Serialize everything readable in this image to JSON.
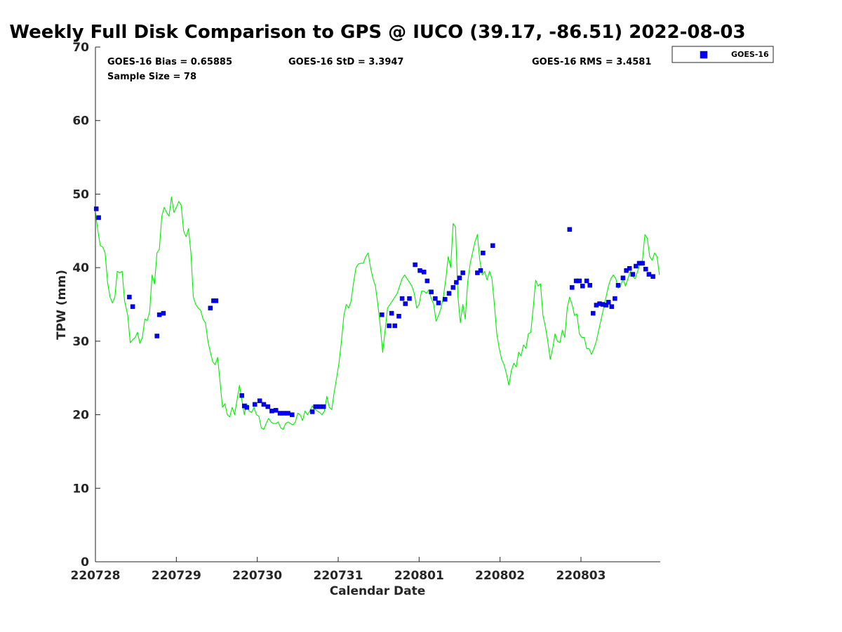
{
  "chart_data": {
    "type": "scatter",
    "title": "Weekly Full Disk Comparison to GPS @ IUCO (39.17, -86.51) 2022-08-03",
    "xlabel": "Calendar Date",
    "ylabel": "TPW (mm)",
    "xlim": [
      0,
      6.98
    ],
    "ylim": [
      0,
      70
    ],
    "x_tick_labels": [
      "220728",
      "220729",
      "220730",
      "220731",
      "220801",
      "220802",
      "220803"
    ],
    "x_tick_values": [
      0,
      1,
      2,
      3,
      4,
      5,
      6
    ],
    "y_ticks": [
      0,
      10,
      20,
      30,
      40,
      50,
      60,
      70
    ],
    "grid": false,
    "legend_placement": "outside-top-right",
    "stats": {
      "bias": "GOES-16 Bias = 0.65885",
      "std": "GOES-16 StD = 3.3947",
      "rms": "GOES-16 RMS = 3.4581",
      "sample": "Sample Size = 78"
    },
    "series": [
      {
        "name": "GOES-16",
        "kind": "scatter",
        "color": "#0000ff",
        "x": [
          0.01,
          0.04,
          0.42,
          0.46,
          0.76,
          0.79,
          0.84,
          1.42,
          1.46,
          1.49,
          1.81,
          1.84,
          1.87,
          1.97,
          2.03,
          2.08,
          2.13,
          2.18,
          2.23,
          2.28,
          2.33,
          2.38,
          2.43,
          2.68,
          2.72,
          2.77,
          2.82,
          3.54,
          3.63,
          3.66,
          3.7,
          3.75,
          3.79,
          3.83,
          3.88,
          3.95,
          4.01,
          4.06,
          4.1,
          4.15,
          4.2,
          4.24,
          4.32,
          4.37,
          4.42,
          4.46,
          4.5,
          4.54,
          4.72,
          4.76,
          4.79,
          4.91,
          5.86,
          5.89,
          5.94,
          5.98,
          6.02,
          6.07,
          6.11,
          6.15,
          6.19,
          6.23,
          6.27,
          6.31,
          6.34,
          6.38,
          6.42,
          6.46,
          6.52,
          6.56,
          6.6,
          6.64,
          6.68,
          6.72,
          6.76,
          6.8,
          6.84,
          6.89
        ],
        "y": [
          48.0,
          46.8,
          36.0,
          34.7,
          30.7,
          33.6,
          33.8,
          34.5,
          35.5,
          35.5,
          22.6,
          21.2,
          21.0,
          21.4,
          21.9,
          21.4,
          21.1,
          20.5,
          20.6,
          20.2,
          20.2,
          20.2,
          20.0,
          20.4,
          21.1,
          21.1,
          21.1,
          33.6,
          32.1,
          33.8,
          32.1,
          33.4,
          35.8,
          35.1,
          35.8,
          40.4,
          39.6,
          39.4,
          38.2,
          36.7,
          35.8,
          35.2,
          35.7,
          36.5,
          37.3,
          38.0,
          38.6,
          39.3,
          39.3,
          39.6,
          42.0,
          43.0,
          45.2,
          37.3,
          38.2,
          38.2,
          37.5,
          38.2,
          37.6,
          33.8,
          34.9,
          35.1,
          35.0,
          34.9,
          35.3,
          34.7,
          35.8,
          37.6,
          38.6,
          39.6,
          39.9,
          39.1,
          40.2,
          40.6,
          40.6,
          39.8,
          39.1,
          38.8
        ]
      },
      {
        "name": "",
        "kind": "line",
        "color": "#00ee00",
        "x": [
          0.0,
          0.03,
          0.06,
          0.09,
          0.12,
          0.15,
          0.18,
          0.21,
          0.24,
          0.27,
          0.3,
          0.33,
          0.36,
          0.4,
          0.43,
          0.46,
          0.49,
          0.52,
          0.55,
          0.58,
          0.61,
          0.64,
          0.67,
          0.7,
          0.73,
          0.76,
          0.79,
          0.82,
          0.85,
          0.88,
          0.91,
          0.94,
          0.97,
          1.0,
          1.03,
          1.06,
          1.09,
          1.12,
          1.15,
          1.18,
          1.21,
          1.24,
          1.27,
          1.3,
          1.33,
          1.36,
          1.39,
          1.42,
          1.45,
          1.48,
          1.51,
          1.54,
          1.57,
          1.6,
          1.63,
          1.66,
          1.69,
          1.72,
          1.75,
          1.78,
          1.81,
          1.84,
          1.87,
          1.9,
          1.93,
          1.96,
          1.99,
          2.02,
          2.05,
          2.08,
          2.11,
          2.14,
          2.17,
          2.2,
          2.23,
          2.26,
          2.29,
          2.32,
          2.35,
          2.38,
          2.41,
          2.44,
          2.47,
          2.5,
          2.53,
          2.56,
          2.59,
          2.62,
          2.65,
          2.68,
          2.71,
          2.74,
          2.77,
          2.8,
          2.83,
          2.86,
          2.89,
          2.92,
          2.95,
          2.98,
          3.01,
          3.04,
          3.07,
          3.1,
          3.13,
          3.16,
          3.19,
          3.22,
          3.25,
          3.28,
          3.31,
          3.34,
          3.37,
          3.4,
          3.43,
          3.46,
          3.49,
          3.52,
          3.55,
          3.58,
          3.61,
          3.64,
          3.67,
          3.7,
          3.73,
          3.76,
          3.79,
          3.82,
          3.85,
          3.88,
          3.91,
          3.94,
          3.97,
          4.0,
          4.03,
          4.06,
          4.09,
          4.12,
          4.15,
          4.18,
          4.21,
          4.24,
          4.27,
          4.3,
          4.33,
          4.36,
          4.39,
          4.42,
          4.45,
          4.48,
          4.51,
          4.54,
          4.57,
          4.6,
          4.63,
          4.66,
          4.69,
          4.72,
          4.75,
          4.78,
          4.81,
          4.84,
          4.87,
          4.9,
          4.93,
          4.96,
          4.99,
          5.02,
          5.05,
          5.08,
          5.11,
          5.14,
          5.17,
          5.2,
          5.23,
          5.26,
          5.29,
          5.32,
          5.35,
          5.38,
          5.41,
          5.44,
          5.47,
          5.5,
          5.53,
          5.56,
          5.59,
          5.62,
          5.65,
          5.68,
          5.71,
          5.74,
          5.77,
          5.8,
          5.83,
          5.86,
          5.89,
          5.92,
          5.95,
          5.98,
          6.01,
          6.04,
          6.07,
          6.1,
          6.13,
          6.16,
          6.19,
          6.22,
          6.25,
          6.28,
          6.31,
          6.34,
          6.37,
          6.4,
          6.43,
          6.46,
          6.49,
          6.52,
          6.55,
          6.58,
          6.61,
          6.64,
          6.67,
          6.7,
          6.73,
          6.76,
          6.79,
          6.82,
          6.85,
          6.88,
          6.91,
          6.94,
          6.97
        ],
        "y": [
          47.5,
          45.0,
          43.0,
          42.8,
          42.0,
          38.0,
          36.0,
          35.2,
          36.0,
          39.5,
          39.3,
          39.5,
          35.5,
          33.5,
          29.8,
          30.2,
          30.5,
          31.2,
          29.7,
          30.5,
          33.0,
          32.8,
          34.0,
          39.0,
          37.8,
          42.0,
          42.5,
          47.0,
          48.2,
          47.5,
          47.0,
          49.6,
          47.5,
          48.2,
          49.0,
          48.5,
          45.0,
          44.2,
          45.3,
          42.0,
          36.0,
          35.0,
          34.5,
          34.2,
          33.0,
          32.5,
          30.0,
          28.5,
          27.2,
          26.8,
          27.8,
          24.5,
          21.0,
          21.5,
          20.0,
          19.7,
          21.0,
          20.0,
          22.0,
          24.0,
          22.0,
          20.0,
          21.5,
          20.5,
          20.3,
          21.0,
          20.0,
          19.8,
          18.2,
          18.0,
          18.8,
          19.5,
          19.0,
          18.8,
          18.8,
          19.0,
          18.2,
          18.0,
          18.8,
          19.0,
          18.8,
          18.6,
          19.0,
          20.2,
          20.0,
          19.2,
          20.5,
          20.0,
          20.5,
          21.2,
          20.8,
          20.5,
          20.3,
          20.0,
          20.5,
          22.5,
          21.0,
          20.7,
          23.0,
          25.0,
          27.0,
          30.0,
          33.5,
          35.0,
          34.5,
          35.5,
          38.0,
          40.0,
          40.5,
          40.6,
          40.6,
          41.5,
          42.0,
          40.0,
          38.5,
          37.5,
          35.0,
          32.0,
          28.5,
          31.5,
          34.5,
          35.0,
          35.5,
          36.0,
          36.5,
          37.5,
          38.5,
          39.0,
          38.5,
          38.0,
          37.5,
          36.5,
          34.5,
          35.0,
          36.8,
          36.8,
          36.5,
          37.0,
          35.8,
          35.0,
          32.7,
          33.5,
          34.5,
          36.0,
          38.5,
          41.5,
          40.0,
          46.0,
          45.5,
          36.0,
          32.5,
          35.0,
          33.0,
          38.0,
          40.5,
          42.0,
          43.5,
          44.5,
          41.0,
          39.0,
          39.5,
          38.3,
          39.5,
          38.5,
          35.0,
          31.0,
          29.0,
          27.5,
          26.8,
          25.5,
          24.0,
          26.0,
          27.0,
          26.5,
          28.5,
          28.0,
          29.5,
          29.0,
          31.0,
          31.2,
          34.5,
          38.3,
          37.5,
          37.8,
          33.5,
          32.0,
          30.0,
          27.5,
          29.0,
          31.0,
          30.0,
          29.8,
          31.5,
          30.5,
          34.5,
          36.0,
          35.0,
          33.5,
          33.7,
          31.0,
          30.5,
          30.5,
          29.0,
          29.0,
          28.2,
          29.0,
          30.0,
          31.5,
          33.0,
          34.5,
          36.0,
          37.5,
          38.5,
          39.0,
          38.5,
          37.2,
          37.5,
          38.5,
          37.5,
          38.5,
          39.5,
          38.8,
          38.5,
          39.5,
          40.5,
          41.0,
          44.5,
          44.0,
          41.5,
          41.0,
          42.0,
          41.5,
          39.0
        ]
      }
    ]
  }
}
